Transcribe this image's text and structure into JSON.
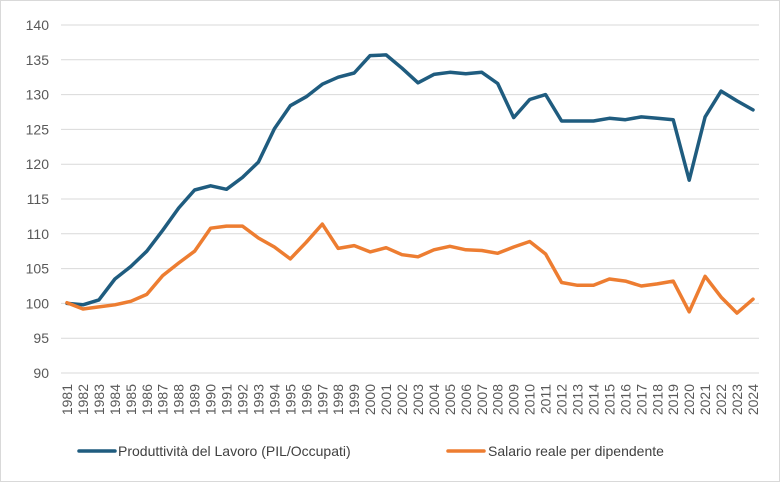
{
  "chart_data": {
    "type": "line",
    "title": "",
    "xlabel": "",
    "ylabel": "",
    "ylim": [
      90,
      140
    ],
    "yticks": [
      90,
      95,
      100,
      105,
      110,
      115,
      120,
      125,
      130,
      135,
      140
    ],
    "grid": "horizontal",
    "legend": "bottom",
    "x": [
      "1981",
      "1982",
      "1983",
      "1984",
      "1985",
      "1986",
      "1987",
      "1988",
      "1989",
      "1990",
      "1991",
      "1992",
      "1993",
      "1994",
      "1995",
      "1996",
      "1997",
      "1998",
      "1999",
      "2000",
      "2001",
      "2002",
      "2003",
      "2004",
      "2005",
      "2006",
      "2007",
      "2008",
      "2009",
      "2010",
      "2011",
      "2012",
      "2013",
      "2014",
      "2015",
      "2016",
      "2017",
      "2018",
      "2019",
      "2020",
      "2021",
      "2022",
      "2023",
      "2024"
    ],
    "series": [
      {
        "name": "Produttività del Lavoro (PIL/Occupati)",
        "color": "#1f5c7f",
        "values": [
          100.0,
          99.8,
          100.5,
          103.5,
          105.3,
          107.5,
          110.5,
          113.7,
          116.3,
          116.9,
          116.4,
          118.1,
          120.3,
          125.1,
          128.4,
          129.7,
          131.5,
          132.5,
          133.1,
          135.6,
          135.7,
          133.8,
          131.7,
          132.9,
          133.2,
          133.0,
          133.2,
          131.6,
          126.7,
          129.3,
          130.0,
          126.2,
          126.2,
          126.2,
          126.6,
          126.4,
          126.8,
          126.6,
          126.4,
          117.7,
          126.8,
          130.5,
          129.1,
          127.8
        ]
      },
      {
        "name": "Salario reale per dipendente",
        "color": "#ed7d31",
        "values": [
          100.1,
          99.2,
          99.5,
          99.8,
          100.3,
          101.3,
          104.0,
          105.8,
          107.5,
          110.8,
          111.1,
          111.1,
          109.4,
          108.1,
          106.4,
          108.8,
          111.4,
          107.9,
          108.3,
          107.4,
          108.0,
          107.0,
          106.7,
          107.7,
          108.2,
          107.7,
          107.6,
          107.2,
          108.1,
          108.9,
          107.1,
          103.0,
          102.6,
          102.6,
          103.5,
          103.2,
          102.5,
          102.8,
          103.2,
          98.8,
          103.9,
          100.9,
          98.6,
          100.6
        ]
      }
    ]
  }
}
